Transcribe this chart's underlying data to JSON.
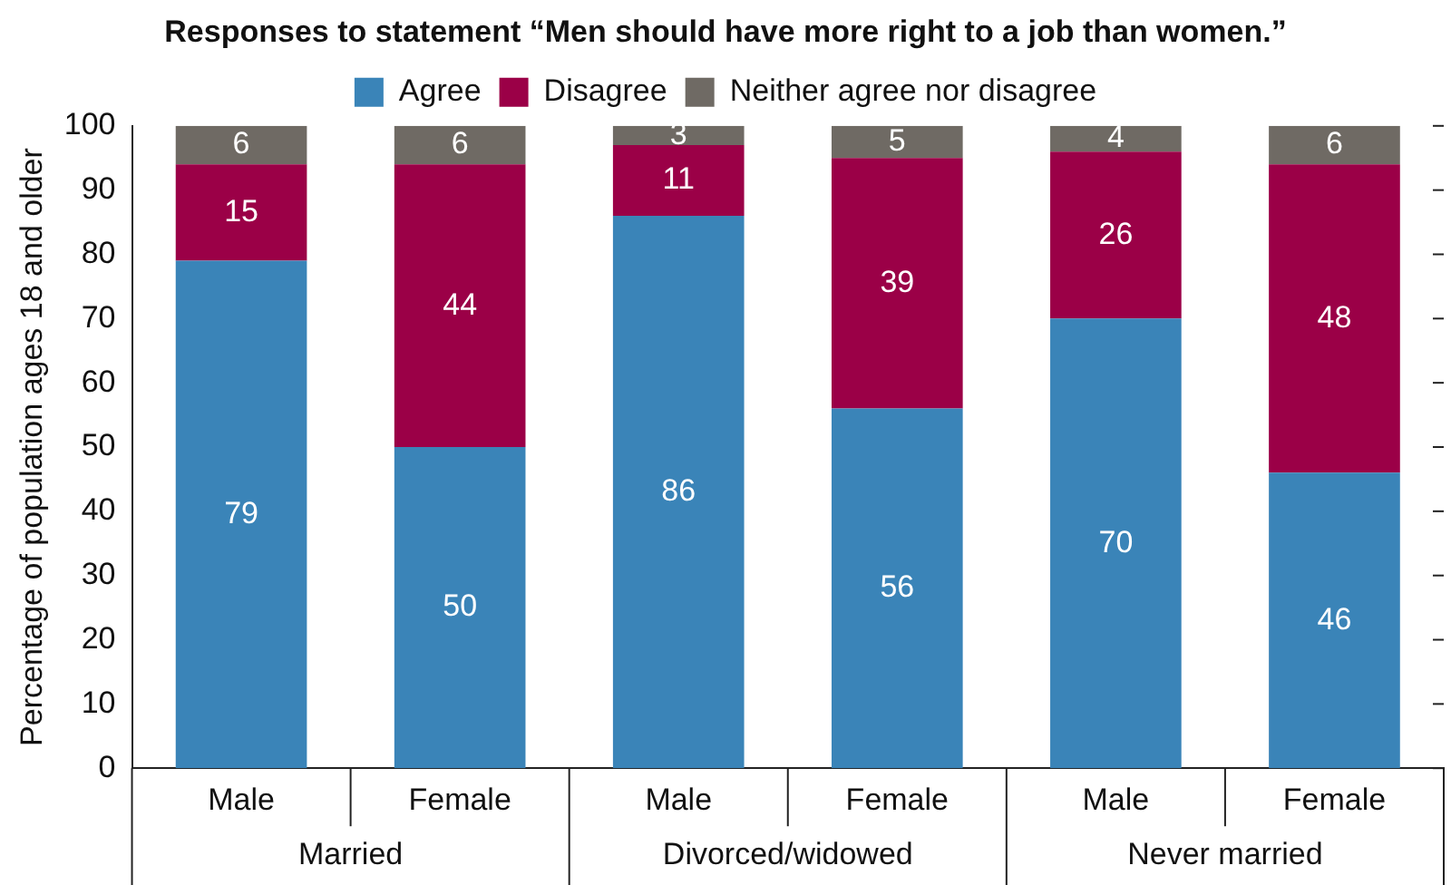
{
  "chart_data": {
    "type": "bar",
    "title": "Responses to statement “Men should have more right to a job than women.”",
    "ylabel": "Percentage of population ages 18 and older",
    "categories": [
      "Male",
      "Female",
      "Male",
      "Female",
      "Male",
      "Female"
    ],
    "annotations": [
      "Married",
      "Divorced/widowed",
      "Never married"
    ],
    "stacked": true,
    "series": [
      {
        "name": "Agree",
        "color": "#3a84b8",
        "values": [
          79,
          50,
          86,
          56,
          70,
          46
        ]
      },
      {
        "name": "Disagree",
        "color": "#9b0047",
        "values": [
          15,
          44,
          11,
          39,
          26,
          48
        ]
      },
      {
        "name": "Neither agree nor disagree",
        "color": "#6f6a64",
        "values": [
          6,
          6,
          3,
          5,
          4,
          6
        ]
      }
    ],
    "ylim": [
      0,
      100
    ],
    "yticks": [
      0,
      10,
      20,
      30,
      40,
      50,
      60,
      70,
      80,
      90,
      100
    ],
    "grid": false,
    "legend": "top",
    "data_labels": true
  }
}
